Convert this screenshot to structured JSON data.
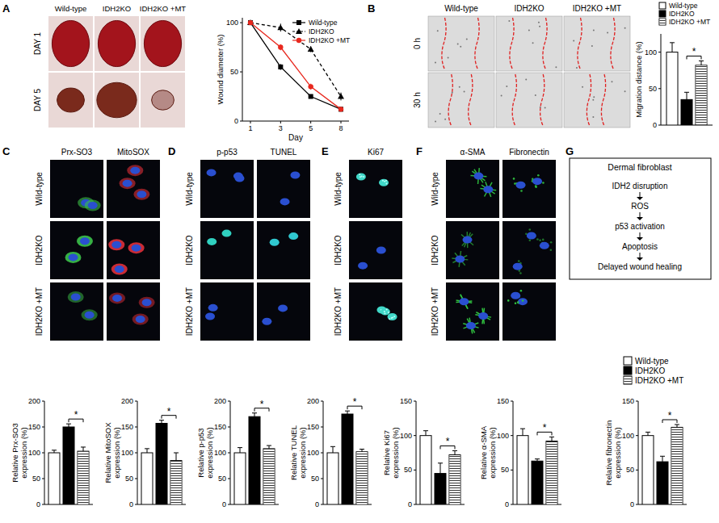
{
  "image_panels": [
    {
      "label": "A",
      "columns": [
        "Wild-type",
        "IDH2KO",
        "IDH2KO +MT"
      ],
      "rows": [
        "DAY 1",
        "DAY 5"
      ]
    },
    {
      "label": "B",
      "columns": [
        "Wild-type",
        "IDH2KO",
        "IDH2KO +MT"
      ],
      "rows": [
        "0 h",
        "30 h"
      ]
    },
    {
      "label": "C",
      "columns": [
        "Prx-SO3",
        "MitoSOX"
      ],
      "rows": [
        "Wild-type",
        "IDH2KO",
        "IDH2KO +MT"
      ]
    },
    {
      "label": "D",
      "columns": [
        "p-p53",
        "TUNEL"
      ],
      "rows": [
        "Wild-type",
        "IDH2KO",
        "IDH2KO +MT"
      ]
    },
    {
      "label": "E",
      "columns": [
        "Ki67"
      ],
      "rows": [
        "Wild-type",
        "IDH2KO",
        "IDH2KO +MT"
      ]
    },
    {
      "label": "F",
      "columns": [
        "α-SMA",
        "Fibronectin"
      ],
      "rows": [
        "Wild-type",
        "IDH2KO",
        "IDH2KO +MT"
      ]
    }
  ],
  "diagram": {
    "label": "G",
    "title": "Dermal fibroblast",
    "steps": [
      "IDH2 disruption",
      "ROS",
      "p53 activation",
      "Apoptosis",
      "Delayed wound healing"
    ]
  },
  "chart_data": [
    {
      "type": "line",
      "categories": [
        "1",
        "3",
        "5",
        "8"
      ],
      "xlabel": "Day",
      "ylabel": "Wound diameter (%)",
      "ylim": [
        0,
        105
      ],
      "yticks": [
        0,
        50,
        100
      ],
      "legend": "upper right",
      "series": [
        {
          "name": "Wild-type",
          "color": "#000000",
          "marker": "square",
          "line_style": "solid",
          "values": [
            100,
            55,
            25,
            12
          ],
          "errors": [
            0,
            3,
            2,
            2
          ]
        },
        {
          "name": "IDH2KO",
          "color": "#000000",
          "marker": "triangle",
          "line_style": "dashed",
          "values": [
            100,
            95,
            73,
            25
          ],
          "errors": [
            0,
            4,
            3,
            4
          ]
        },
        {
          "name": "IDH2KO +MT",
          "color": "#e8281e",
          "marker": "circle",
          "line_style": "solid",
          "values": [
            100,
            75,
            35,
            12
          ],
          "errors": [
            0,
            3,
            3,
            2
          ]
        }
      ]
    },
    {
      "type": "bar",
      "categories": [
        "Wild-type",
        "IDH2KO",
        "IDH2KO +MT"
      ],
      "colors": [
        "#ffffff",
        "#000000",
        "#ffffff"
      ],
      "values": [
        100,
        35,
        82
      ],
      "errors": [
        13,
        10,
        6
      ],
      "ylabel": "Migration distance (%)",
      "ylim": [
        0,
        125
      ],
      "yticks": [
        0,
        50,
        100
      ],
      "tick_labels": "y",
      "legend": "top",
      "annotation": "*"
    },
    {
      "type": "bar",
      "colors": [
        "#ffffff",
        "#000000",
        "#ffffff"
      ],
      "values": [
        100,
        150,
        103
      ],
      "errors": [
        5,
        6,
        8
      ],
      "ylabel": [
        "Relative Prx-SO3",
        "expression (%)"
      ],
      "ylim": [
        0,
        200
      ],
      "yticks": [
        0,
        50,
        100,
        150,
        200
      ],
      "tick_labels": "y",
      "annotation": "*"
    },
    {
      "type": "bar",
      "colors": [
        "#ffffff",
        "#000000",
        "#ffffff"
      ],
      "values": [
        100,
        157,
        85
      ],
      "errors": [
        8,
        6,
        15
      ],
      "ylabel": [
        "Relative MitoSOX",
        "expression (%)"
      ],
      "ylim": [
        0,
        200
      ],
      "yticks": [
        0,
        50,
        100,
        150,
        200
      ],
      "tick_labels": "y",
      "annotation": "*"
    },
    {
      "type": "bar",
      "colors": [
        "#ffffff",
        "#000000",
        "#ffffff"
      ],
      "values": [
        100,
        170,
        108
      ],
      "errors": [
        10,
        7,
        6
      ],
      "ylabel": [
        "Relative p-p53",
        "expression (%)"
      ],
      "ylim": [
        0,
        200
      ],
      "yticks": [
        0,
        50,
        100,
        150,
        200
      ],
      "tick_labels": "y",
      "annotation": "*"
    },
    {
      "type": "bar",
      "colors": [
        "#ffffff",
        "#000000",
        "#ffffff"
      ],
      "values": [
        100,
        175,
        102
      ],
      "errors": [
        12,
        6,
        5
      ],
      "ylabel": [
        "Relative TUNEL",
        "expression (%)"
      ],
      "ylim": [
        0,
        200
      ],
      "yticks": [
        0,
        50,
        100,
        150,
        200
      ],
      "tick_labels": "y",
      "annotation": "*"
    },
    {
      "type": "bar",
      "colors": [
        "#ffffff",
        "#000000",
        "#ffffff"
      ],
      "values": [
        100,
        45,
        72
      ],
      "errors": [
        7,
        15,
        6
      ],
      "ylabel": [
        "Relative Ki67",
        "expression (%)"
      ],
      "ylim": [
        0,
        150
      ],
      "yticks": [
        0,
        50,
        100,
        150
      ],
      "tick_labels": "y",
      "annotation": "*"
    },
    {
      "type": "bar",
      "colors": [
        "#ffffff",
        "#000000",
        "#ffffff"
      ],
      "values": [
        100,
        63,
        92
      ],
      "errors": [
        10,
        3,
        6
      ],
      "ylabel": [
        "Relative α-SMA",
        "expression (%)"
      ],
      "ylim": [
        0,
        150
      ],
      "yticks": [
        0,
        50,
        100,
        150
      ],
      "tick_labels": "y",
      "annotation": "*"
    },
    {
      "type": "bar",
      "categories": [
        "Wild-type",
        "IDH2KO",
        "IDH2KO +MT"
      ],
      "colors": [
        "#ffffff",
        "#000000",
        "#ffffff"
      ],
      "values": [
        100,
        62,
        112
      ],
      "errors": [
        5,
        8,
        4
      ],
      "ylabel": [
        "Relative fibronectin",
        "expression (%)"
      ],
      "ylim": [
        0,
        150
      ],
      "yticks": [
        0,
        50,
        100,
        150
      ],
      "tick_labels": "y",
      "legend": "top",
      "annotation": "*"
    }
  ]
}
